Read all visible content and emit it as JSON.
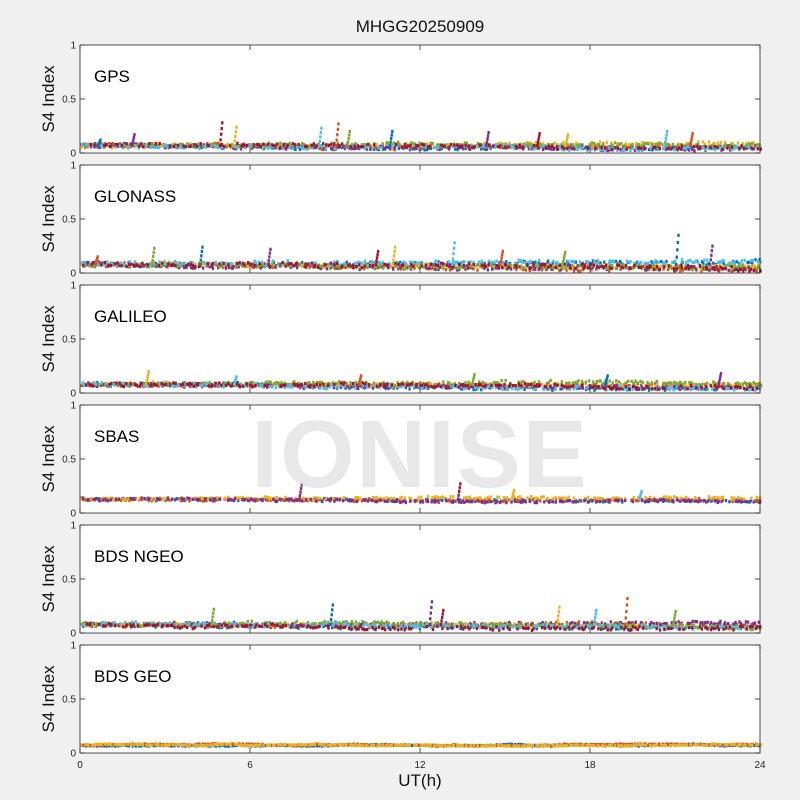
{
  "title": "MHGG20250909",
  "watermark": "IONISE",
  "colors": [
    "#0072bd",
    "#d95319",
    "#edb120",
    "#7e2f8e",
    "#77ac30",
    "#4dbeee",
    "#a2142f"
  ],
  "chart_data": {
    "type": "scatter",
    "title": "MHGG20250909",
    "xlabel": "UT(h)",
    "ylabel": "S4 Index",
    "xlim": [
      0,
      24
    ],
    "ylim": [
      0,
      1
    ],
    "x_ticks": [
      "0",
      "6",
      "12",
      "18",
      "24"
    ],
    "y_ticks": [
      "0",
      "0.5",
      "1"
    ],
    "grid": false,
    "panels": [
      {
        "label": "GPS",
        "series_count": 7,
        "baseline": 0.07,
        "spread": 0.04,
        "spikes": [
          {
            "x": 0.6,
            "y": 0.12
          },
          {
            "x": 1.8,
            "y": 0.17
          },
          {
            "x": 4.9,
            "y": 0.28
          },
          {
            "x": 5.4,
            "y": 0.24
          },
          {
            "x": 8.4,
            "y": 0.23
          },
          {
            "x": 9.0,
            "y": 0.27
          },
          {
            "x": 9.4,
            "y": 0.2
          },
          {
            "x": 10.9,
            "y": 0.2
          },
          {
            "x": 14.3,
            "y": 0.19
          },
          {
            "x": 16.1,
            "y": 0.18
          },
          {
            "x": 17.1,
            "y": 0.17
          },
          {
            "x": 20.6,
            "y": 0.2
          },
          {
            "x": 21.5,
            "y": 0.18
          }
        ]
      },
      {
        "label": "GLONASS",
        "series_count": 7,
        "baseline": 0.08,
        "spread": 0.05,
        "spikes": [
          {
            "x": 0.5,
            "y": 0.15
          },
          {
            "x": 2.5,
            "y": 0.23
          },
          {
            "x": 4.2,
            "y": 0.24
          },
          {
            "x": 6.6,
            "y": 0.22
          },
          {
            "x": 10.4,
            "y": 0.2
          },
          {
            "x": 11.0,
            "y": 0.24
          },
          {
            "x": 13.1,
            "y": 0.28
          },
          {
            "x": 14.8,
            "y": 0.2
          },
          {
            "x": 17.0,
            "y": 0.19
          },
          {
            "x": 21.0,
            "y": 0.35
          },
          {
            "x": 22.2,
            "y": 0.25
          }
        ]
      },
      {
        "label": "GALILEO",
        "series_count": 7,
        "baseline": 0.08,
        "spread": 0.04,
        "spikes": [
          {
            "x": 2.3,
            "y": 0.2
          },
          {
            "x": 5.4,
            "y": 0.15
          },
          {
            "x": 9.8,
            "y": 0.16
          },
          {
            "x": 13.8,
            "y": 0.17
          },
          {
            "x": 18.5,
            "y": 0.16
          },
          {
            "x": 22.5,
            "y": 0.18
          }
        ]
      },
      {
        "label": "SBAS",
        "series_count": 4,
        "baseline": 0.13,
        "spread": 0.025,
        "spikes": [
          {
            "x": 7.7,
            "y": 0.26
          },
          {
            "x": 13.3,
            "y": 0.27
          },
          {
            "x": 15.2,
            "y": 0.21
          },
          {
            "x": 19.7,
            "y": 0.2
          }
        ]
      },
      {
        "label": "BDS NGEO",
        "series_count": 7,
        "baseline": 0.08,
        "spread": 0.04,
        "spikes": [
          {
            "x": 4.6,
            "y": 0.22
          },
          {
            "x": 8.8,
            "y": 0.26
          },
          {
            "x": 12.3,
            "y": 0.29
          },
          {
            "x": 12.7,
            "y": 0.21
          },
          {
            "x": 16.8,
            "y": 0.24
          },
          {
            "x": 18.1,
            "y": 0.21
          },
          {
            "x": 19.2,
            "y": 0.32
          },
          {
            "x": 20.9,
            "y": 0.2
          }
        ]
      },
      {
        "label": "BDS GEO",
        "series_count": 3,
        "baseline": 0.075,
        "spread": 0.008,
        "spikes": []
      }
    ]
  }
}
